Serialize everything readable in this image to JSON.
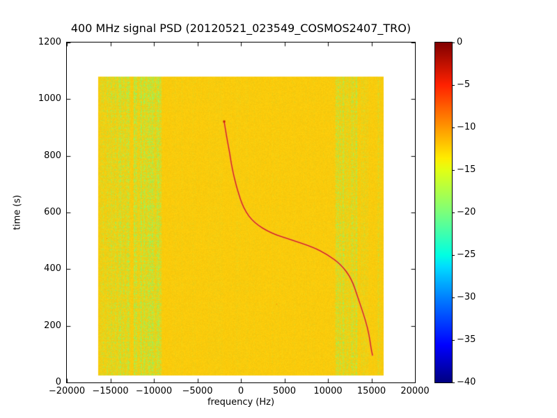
{
  "chart_data": {
    "type": "heatmap",
    "title": "400 MHz signal PSD (20120521_023549_COSMOS2407_TRO)",
    "xlabel": "frequency (Hz)",
    "ylabel": "time (s)",
    "xlim": [
      -20000,
      20000
    ],
    "ylim": [
      0,
      1200
    ],
    "grid": false,
    "xticks": [
      {
        "value": -20000,
        "label": "−20000"
      },
      {
        "value": -15000,
        "label": "−15000"
      },
      {
        "value": -10000,
        "label": "−10000"
      },
      {
        "value": -5000,
        "label": "−5000"
      },
      {
        "value": 0,
        "label": "0"
      },
      {
        "value": 5000,
        "label": "5000"
      },
      {
        "value": 10000,
        "label": "10000"
      },
      {
        "value": 15000,
        "label": "15000"
      },
      {
        "value": 20000,
        "label": "20000"
      }
    ],
    "yticks": [
      {
        "value": 0,
        "label": "0"
      },
      {
        "value": 200,
        "label": "200"
      },
      {
        "value": 400,
        "label": "400"
      },
      {
        "value": 600,
        "label": "600"
      },
      {
        "value": 800,
        "label": "800"
      },
      {
        "value": 1000,
        "label": "1000"
      },
      {
        "value": 1200,
        "label": "1200"
      }
    ],
    "colorbar": {
      "vmin": -40,
      "vmax": 0,
      "colormap": "jet",
      "ticks": [
        {
          "value": 0,
          "label": "0"
        },
        {
          "value": -5,
          "label": "−5"
        },
        {
          "value": -10,
          "label": "−10"
        },
        {
          "value": -15,
          "label": "−15"
        },
        {
          "value": -20,
          "label": "−20"
        },
        {
          "value": -25,
          "label": "−25"
        },
        {
          "value": -30,
          "label": "−30"
        },
        {
          "value": -35,
          "label": "−35"
        },
        {
          "value": -40,
          "label": "−40"
        }
      ],
      "gradient_stops": [
        {
          "pos": 0.0,
          "color": "#800000"
        },
        {
          "pos": 0.125,
          "color": "#ff2100"
        },
        {
          "pos": 0.25,
          "color": "#ff9700"
        },
        {
          "pos": 0.34,
          "color": "#ffec00"
        },
        {
          "pos": 0.375,
          "color": "#e2ff14"
        },
        {
          "pos": 0.5,
          "color": "#7bff7b"
        },
        {
          "pos": 0.625,
          "color": "#00ffe2"
        },
        {
          "pos": 0.66,
          "color": "#00dbff"
        },
        {
          "pos": 0.75,
          "color": "#0080ff"
        },
        {
          "pos": 0.89,
          "color": "#0000ff"
        },
        {
          "pos": 1.0,
          "color": "#000080"
        }
      ]
    },
    "heatmap": {
      "data_extent": {
        "freq": [
          -16384,
          16384
        ],
        "time": [
          25,
          1080
        ]
      },
      "background_level_dB": -13,
      "background_color": "#fcca0a",
      "band_color": "#96f45a",
      "base_texture": 0.04,
      "noise_bands": [
        {
          "freq_range": [
            -16384,
            -12500
          ],
          "strength": 0.32,
          "level_dB": -16
        },
        {
          "freq_range": [
            -12500,
            -9000
          ],
          "strength": 0.52,
          "level_dB": -18
        },
        {
          "freq_range": [
            10700,
            13600
          ],
          "strength": 0.4,
          "level_dB": -17
        },
        {
          "freq_range": [
            13600,
            14800
          ],
          "strength": 0.16,
          "level_dB": -15
        },
        {
          "freq_range": [
            15300,
            16384
          ],
          "strength": 0.13,
          "level_dB": -15
        }
      ]
    },
    "doppler_track": {
      "description": "satellite doppler S-curve",
      "level_dB": -4,
      "color": "#cc2010",
      "halo_color": "#ff7da0",
      "points_time_freq": [
        [
          920,
          -1920
        ],
        [
          860,
          -1600
        ],
        [
          809,
          -1280
        ],
        [
          760,
          -1040
        ],
        [
          686,
          -480
        ],
        [
          612,
          320
        ],
        [
          563,
          1520
        ],
        [
          526,
          3520
        ],
        [
          502,
          5920
        ],
        [
          477,
          8320
        ],
        [
          452,
          9920
        ],
        [
          416,
          11520
        ],
        [
          366,
          12720
        ],
        [
          293,
          13520
        ],
        [
          219,
          14320
        ],
        [
          170,
          14720
        ],
        [
          120,
          14960
        ],
        [
          96,
          15120
        ]
      ]
    }
  },
  "layout_colors": {
    "figure_background": "#ffffff",
    "axes_edge": "#000000",
    "text": "#000000"
  }
}
